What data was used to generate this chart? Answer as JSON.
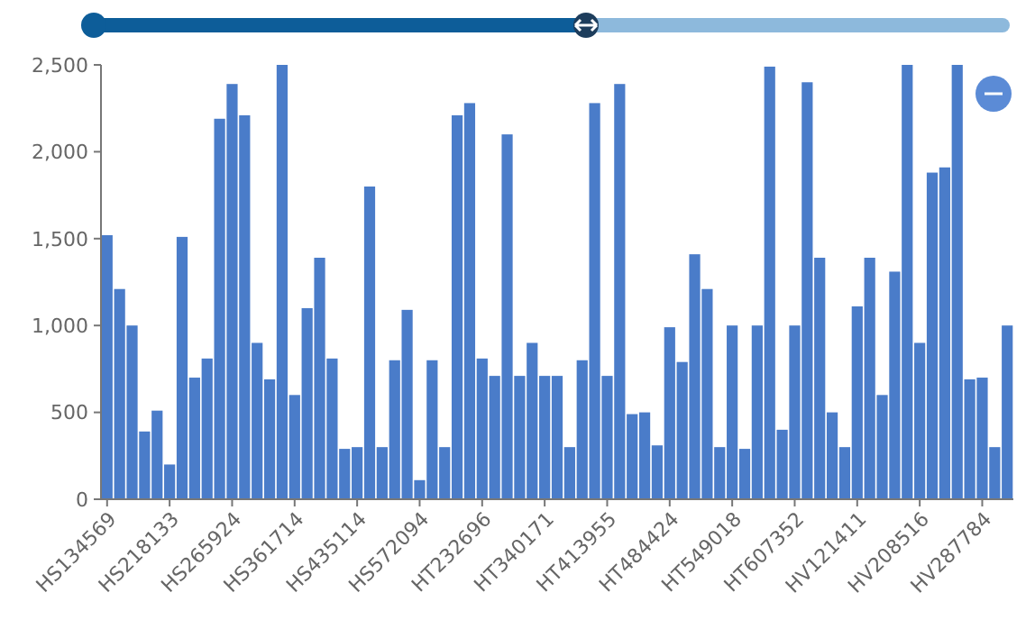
{
  "chart_data": {
    "type": "bar",
    "categories": [
      "HS134569",
      null,
      null,
      null,
      null,
      "HS218133",
      null,
      null,
      null,
      null,
      "HS265924",
      null,
      null,
      null,
      null,
      "HS361714",
      null,
      null,
      null,
      null,
      "HS435114",
      null,
      null,
      null,
      null,
      "HS572094",
      null,
      null,
      null,
      null,
      "HT232696",
      null,
      null,
      null,
      null,
      "HT340171",
      null,
      null,
      null,
      null,
      "HT413955",
      null,
      null,
      null,
      null,
      "HT484424",
      null,
      null,
      null,
      null,
      "HT549018",
      null,
      null,
      null,
      null,
      "HT607352",
      null,
      null,
      null,
      null,
      "HV121411",
      null,
      null,
      null,
      null,
      "HV208516",
      null,
      null,
      null,
      null,
      "HV287784",
      null,
      null
    ],
    "values": [
      1520,
      1210,
      1000,
      390,
      510,
      200,
      1510,
      700,
      810,
      2190,
      2390,
      2210,
      900,
      690,
      2500,
      600,
      1100,
      1390,
      810,
      290,
      300,
      1800,
      300,
      800,
      1090,
      110,
      800,
      300,
      2210,
      2280,
      810,
      710,
      2100,
      710,
      900,
      710,
      710,
      300,
      800,
      2280,
      710,
      2390,
      490,
      500,
      310,
      990,
      790,
      1410,
      1210,
      300,
      1000,
      290,
      1000,
      2490,
      400,
      1000,
      2400,
      1390,
      500,
      300,
      1110,
      1390,
      600,
      1310,
      2500,
      900,
      1880,
      1910,
      2500,
      690,
      700,
      300,
      1000
    ],
    "color": "#4a7cc9",
    "ylim": [
      0,
      2500
    ],
    "yticks": [
      {
        "value": 0,
        "label": "0"
      },
      {
        "value": 500,
        "label": "500"
      },
      {
        "value": 1000,
        "label": "1,000"
      },
      {
        "value": 1500,
        "label": "1,500"
      },
      {
        "value": 2000,
        "label": "2,000"
      },
      {
        "value": 2500,
        "label": "2,500"
      }
    ],
    "grid": false
  }
}
